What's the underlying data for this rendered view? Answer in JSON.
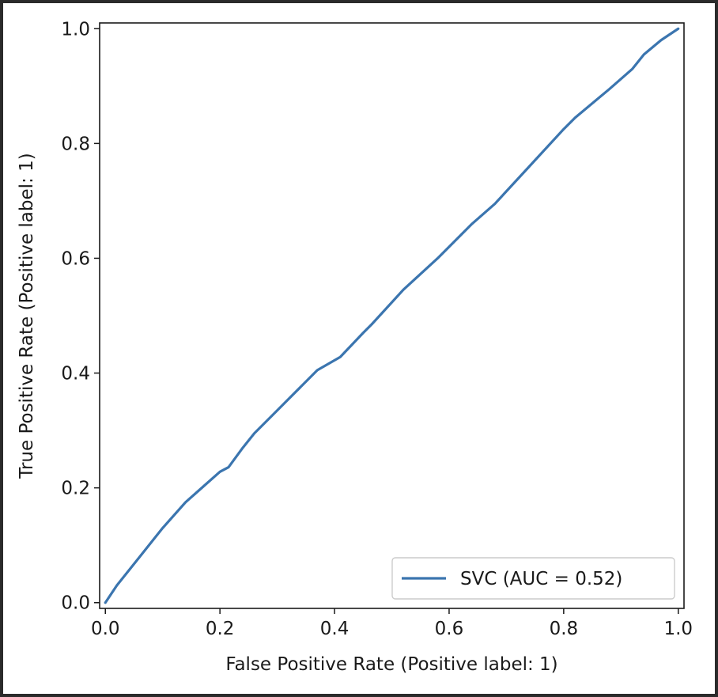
{
  "chart_data": {
    "type": "line",
    "title": "",
    "xlabel": "False Positive Rate (Positive label: 1)",
    "ylabel": "True Positive Rate (Positive label: 1)",
    "xlim": [
      -0.01,
      1.01
    ],
    "ylim": [
      -0.01,
      1.01
    ],
    "xticks": [
      0.0,
      0.2,
      0.4,
      0.6,
      0.8,
      1.0
    ],
    "xtick_labels": [
      "0.0",
      "0.2",
      "0.4",
      "0.6",
      "0.8",
      "1.0"
    ],
    "yticks": [
      0.0,
      0.2,
      0.4,
      0.6,
      0.8,
      1.0
    ],
    "ytick_labels": [
      "0.0",
      "0.2",
      "0.4",
      "0.6",
      "0.8",
      "1.0"
    ],
    "grid": false,
    "legend_position": "lower-right",
    "series": [
      {
        "name": "SVC (AUC = 0.52)",
        "color": "#3b75af",
        "x": [
          0.0,
          0.02,
          0.06,
          0.1,
          0.14,
          0.2,
          0.215,
          0.24,
          0.26,
          0.3,
          0.34,
          0.37,
          0.41,
          0.45,
          0.465,
          0.52,
          0.58,
          0.64,
          0.68,
          0.74,
          0.8,
          0.82,
          0.88,
          0.92,
          0.94,
          0.97,
          1.0
        ],
        "y": [
          0.0,
          0.03,
          0.08,
          0.13,
          0.175,
          0.228,
          0.236,
          0.27,
          0.295,
          0.335,
          0.375,
          0.405,
          0.428,
          0.47,
          0.485,
          0.545,
          0.6,
          0.66,
          0.695,
          0.76,
          0.825,
          0.845,
          0.895,
          0.93,
          0.955,
          0.98,
          1.0
        ]
      }
    ]
  }
}
